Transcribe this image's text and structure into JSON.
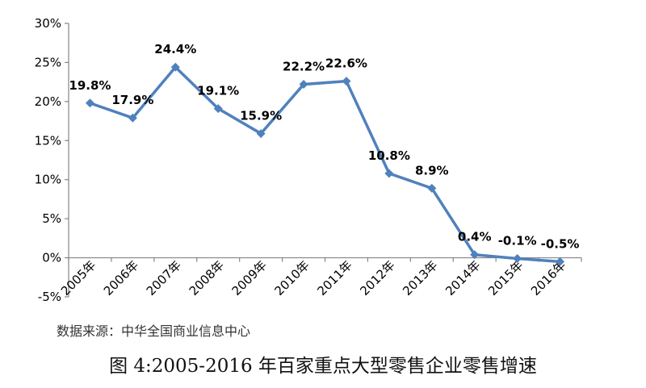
{
  "chart_data": {
    "type": "line",
    "categories": [
      "2005年",
      "2006年",
      "2007年",
      "2008年",
      "2009年",
      "2010年",
      "2011年",
      "2012年",
      "2013年",
      "2014年",
      "2015年",
      "2016年"
    ],
    "series": [
      {
        "values": [
          19.8,
          17.9,
          24.4,
          19.1,
          15.9,
          22.2,
          22.6,
          10.8,
          8.9,
          0.4,
          -0.1,
          -0.5
        ],
        "data_labels": [
          "19.8%",
          "17.9%",
          "24.4%",
          "19.1%",
          "15.9%",
          "22.2%",
          "22.6%",
          "10.8%",
          "8.9%",
          "0.4%",
          "-0.1%",
          "-0.5%"
        ]
      }
    ],
    "ylim": [
      -5,
      30
    ],
    "yticks": [
      30,
      25,
      20,
      15,
      10,
      5,
      0,
      -5
    ],
    "ytick_labels": [
      "30%",
      "25%",
      "20%",
      "15%",
      "10%",
      "5%",
      "0%",
      "-5%"
    ],
    "grid": false,
    "legend": "none",
    "colors": {
      "line": "#4f81bd",
      "axis": "#868686",
      "label": "#000000"
    }
  },
  "source_note": "数据来源：中华全国商业信息中心",
  "caption": "图 4:2005-2016 年百家重点大型零售企业零售增速"
}
